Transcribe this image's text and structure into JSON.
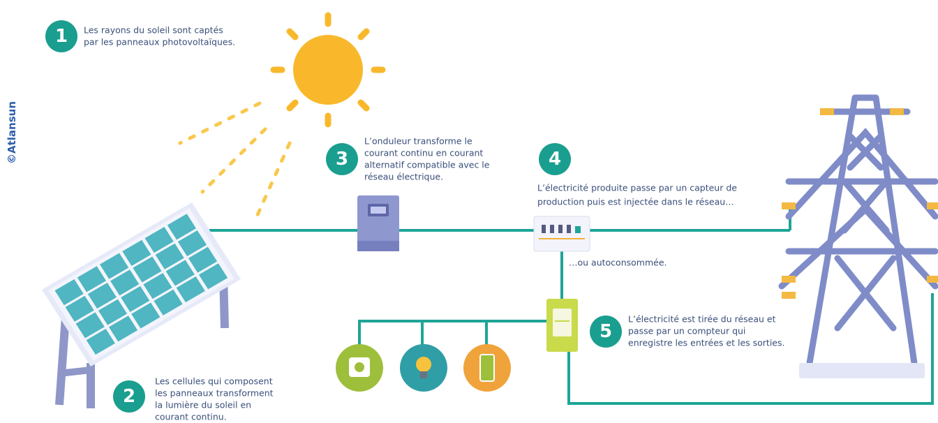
{
  "credit": "©Atlansun",
  "steps": [
    {
      "number": "1",
      "lines": [
        "Les rayons du soleil sont captés",
        "par les panneaux photovoltaïques."
      ]
    },
    {
      "number": "2",
      "lines": [
        "Les cellules qui composent",
        "les panneaux transforment",
        "la lumière du soleil en",
        "courant continu."
      ]
    },
    {
      "number": "3",
      "lines": [
        "L’onduleur transforme le",
        "courant continu en courant",
        "alternatif compatible avec le",
        "réseau électrique."
      ]
    },
    {
      "number": "4",
      "lines": [
        "L’électricité produite passe par un capteur de",
        "production puis est injectée dans le réseau…"
      ]
    },
    {
      "number": "5",
      "lines": [
        "L’électricité est tirée du réseau et",
        "passe par un compteur qui",
        "enregistre les entrées et les sorties."
      ]
    }
  ],
  "note": "…ou autoconsommée."
}
